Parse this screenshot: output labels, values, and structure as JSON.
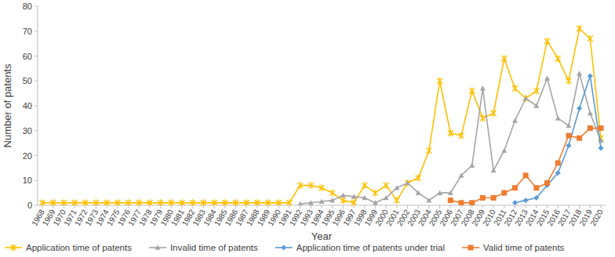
{
  "chart_data": {
    "type": "line",
    "x_label": "Year",
    "y_label": "Number of patents",
    "categories": [
      "1968",
      "1969",
      "1970",
      "1971",
      "1972",
      "1973",
      "1974",
      "1975",
      "1976",
      "1977",
      "1978",
      "1979",
      "1980",
      "1981",
      "1982",
      "1983",
      "1984",
      "1985",
      "1986",
      "1987",
      "1988",
      "1989",
      "1990",
      "1991",
      "1992",
      "1993",
      "1994",
      "1995",
      "1996",
      "1997",
      "1998",
      "1999",
      "2000",
      "2001",
      "2002",
      "2003",
      "2004",
      "2005",
      "2006",
      "2007",
      "2008",
      "2009",
      "2010",
      "2011",
      "2012",
      "2013",
      "2014",
      "2015",
      "2016",
      "2017",
      "2018",
      "2019",
      "2020"
    ],
    "ylim": [
      0,
      80
    ],
    "yticks": [
      0,
      10,
      20,
      30,
      40,
      50,
      60,
      70,
      80
    ],
    "grid": false,
    "legend": "bottom",
    "series": [
      {
        "name": "Application time of patents",
        "color": "#ffc000",
        "marker": "x",
        "line_style": "solid",
        "values": [
          1,
          1,
          1,
          1,
          1,
          1,
          1,
          1,
          1,
          1,
          1,
          1,
          1,
          1,
          1,
          1,
          1,
          1,
          1,
          1,
          1,
          1,
          1,
          1,
          8,
          8,
          7,
          5,
          2,
          1,
          8,
          5,
          8,
          2,
          9,
          11,
          22,
          50,
          29,
          28,
          46,
          35,
          37,
          59,
          47,
          43,
          46,
          66,
          59,
          50,
          71,
          67,
          27
        ]
      },
      {
        "name": "Invalid time of patents",
        "color": "#a5a5a5",
        "marker": "triangle",
        "line_style": "solid",
        "values": [
          null,
          null,
          null,
          null,
          null,
          null,
          null,
          null,
          null,
          null,
          null,
          null,
          null,
          null,
          null,
          null,
          null,
          null,
          null,
          null,
          null,
          null,
          null,
          null,
          0.5,
          1,
          1.5,
          2,
          4,
          3.5,
          3,
          1,
          3,
          7,
          9,
          5,
          2,
          5,
          5,
          12,
          16,
          47,
          14,
          22,
          34,
          43,
          40,
          51,
          35,
          32,
          53,
          37,
          26
        ]
      },
      {
        "name": "Application time of patents under trial",
        "color": "#5b9bd5",
        "marker": "diamond",
        "line_style": "solid",
        "values": [
          null,
          null,
          null,
          null,
          null,
          null,
          null,
          null,
          null,
          null,
          null,
          null,
          null,
          null,
          null,
          null,
          null,
          null,
          null,
          null,
          null,
          null,
          null,
          null,
          null,
          null,
          null,
          null,
          null,
          null,
          null,
          null,
          null,
          null,
          null,
          null,
          null,
          null,
          null,
          null,
          null,
          null,
          null,
          null,
          1,
          2,
          3,
          8,
          13,
          24,
          39,
          52,
          23
        ]
      },
      {
        "name": "Valid time of patents",
        "color": "#ed7d31",
        "marker": "square",
        "line_style": "solid",
        "values": [
          null,
          null,
          null,
          null,
          null,
          null,
          null,
          null,
          null,
          null,
          null,
          null,
          null,
          null,
          null,
          null,
          null,
          null,
          null,
          null,
          null,
          null,
          null,
          null,
          null,
          null,
          null,
          null,
          null,
          null,
          null,
          null,
          null,
          null,
          null,
          null,
          null,
          null,
          2,
          1,
          1,
          3,
          3,
          5,
          7,
          12,
          7,
          9,
          17,
          28,
          27,
          31,
          31
        ]
      }
    ]
  }
}
